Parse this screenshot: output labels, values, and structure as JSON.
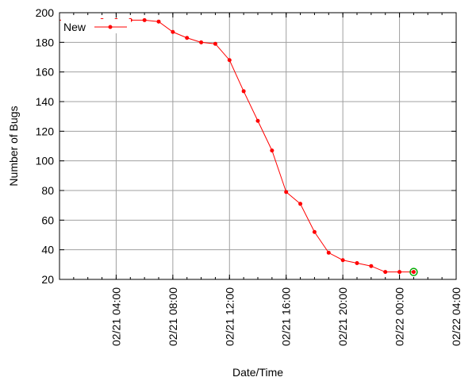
{
  "chart_data": {
    "type": "line",
    "title": "",
    "xlabel": "Date/Time",
    "ylabel": "Number of Bugs",
    "ylim": [
      20,
      200
    ],
    "y_ticks": [
      20,
      40,
      60,
      80,
      100,
      120,
      140,
      160,
      180,
      200
    ],
    "xlim": [
      "2025-02-21 00:00",
      "2025-02-22 04:00"
    ],
    "x_ticks": [
      "2025-02-21 04:00",
      "2025-02-21 08:00",
      "2025-02-21 12:00",
      "2025-02-21 16:00",
      "2025-02-21 20:00",
      "2025-02-22 00:00",
      "2025-02-22 04:00"
    ],
    "x_tick_labels": [
      "02/21 04:00",
      "02/21 08:00",
      "02/21 12:00",
      "02/21 16:00",
      "02/21 20:00",
      "02/22 00:00",
      "02/22 04:00"
    ],
    "grid": true,
    "legend_position": "top-left",
    "series": [
      {
        "name": "New",
        "color": "#ff0000",
        "x": [
          "2025-02-21 00:00",
          "2025-02-21 03:00",
          "2025-02-21 04:00",
          "2025-02-21 05:00",
          "2025-02-21 06:00",
          "2025-02-21 07:00",
          "2025-02-21 08:00",
          "2025-02-21 09:00",
          "2025-02-21 10:00",
          "2025-02-21 11:00",
          "2025-02-21 12:00",
          "2025-02-21 13:00",
          "2025-02-21 14:00",
          "2025-02-21 15:00",
          "2025-02-21 16:00",
          "2025-02-21 17:00",
          "2025-02-21 18:00",
          "2025-02-21 19:00",
          "2025-02-21 20:00",
          "2025-02-21 21:00",
          "2025-02-21 22:00",
          "2025-02-21 23:00",
          "2025-02-22 00:00",
          "2025-02-22 01:00"
        ],
        "values": [
          195,
          195,
          195,
          195,
          195,
          194,
          187,
          183,
          180,
          179,
          168,
          147,
          127,
          107,
          79,
          71,
          52,
          38,
          33,
          31,
          29,
          25,
          25,
          25
        ],
        "highlight_last": true,
        "highlight_color": "#00aa00"
      }
    ]
  }
}
